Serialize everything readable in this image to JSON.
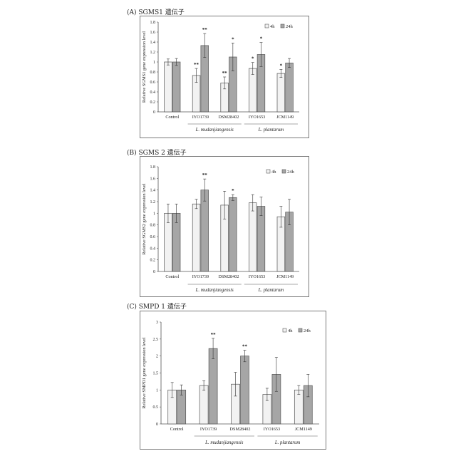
{
  "panels": [
    {
      "title": "(A) SGMS1 遺伝子"
    },
    {
      "title": "(B) SGMS 2 遺伝子"
    },
    {
      "title": "(C) SMPD 1 遺伝子"
    }
  ],
  "colors": {
    "bar_4h": "#f2f2f2",
    "bar_24h": "#a6a6a6",
    "frame": "#7a7a7a"
  },
  "chart_data": [
    {
      "type": "bar",
      "title": "",
      "ylabel": "Relative SGMS1 gene expression level",
      "ylim": [
        0,
        1.8
      ],
      "yticks": [
        "0",
        "0.2",
        "0.4",
        "0.6",
        "0.8",
        "1",
        "1.2",
        "1.4",
        "1.6",
        "1.8"
      ],
      "categories": [
        "Control",
        "IYO1739",
        "DSM28402",
        "IYO1653",
        "JCM1149"
      ],
      "groups": [
        {
          "label": "L. mudanjiangensis",
          "categories": [
            "IYO1739",
            "DSM28402"
          ]
        },
        {
          "label": "L. plantarum",
          "categories": [
            "IYO1653",
            "JCM1149"
          ]
        }
      ],
      "legend_position": "top-right",
      "series": [
        {
          "name": "4h",
          "values": [
            1.0,
            0.73,
            0.58,
            0.87,
            0.77
          ],
          "errors": [
            0.06,
            0.14,
            0.12,
            0.12,
            0.08
          ],
          "sig": [
            "",
            "**",
            "**",
            "*",
            "*"
          ]
        },
        {
          "name": "24h",
          "values": [
            1.0,
            1.33,
            1.1,
            1.15,
            0.98
          ],
          "errors": [
            0.07,
            0.24,
            0.28,
            0.24,
            0.09
          ],
          "sig": [
            "",
            "**",
            "*",
            "*",
            ""
          ]
        }
      ]
    },
    {
      "type": "bar",
      "title": "",
      "ylabel": "Relative SGMS2 gene expression level",
      "ylim": [
        0,
        1.8
      ],
      "yticks": [
        "0",
        "0.2",
        "0.4",
        "0.6",
        "0.8",
        "1",
        "1.2",
        "1.4",
        "1.6",
        "1.8"
      ],
      "categories": [
        "Control",
        "IYO1739",
        "DSM28402",
        "IYO1653",
        "JCM1149"
      ],
      "groups": [
        {
          "label": "L. mudanjiangensis",
          "categories": [
            "IYO1739",
            "DSM28402"
          ]
        },
        {
          "label": "L. plantarum",
          "categories": [
            "IYO1653",
            "JCM1149"
          ]
        }
      ],
      "legend_position": "top-right",
      "series": [
        {
          "name": "4h",
          "values": [
            1.0,
            1.16,
            1.14,
            1.18,
            0.94
          ],
          "errors": [
            0.16,
            0.08,
            0.24,
            0.14,
            0.18
          ],
          "sig": [
            "",
            "",
            "",
            "",
            ""
          ]
        },
        {
          "name": "24h",
          "values": [
            1.0,
            1.4,
            1.27,
            1.12,
            1.02
          ],
          "errors": [
            0.16,
            0.19,
            0.05,
            0.16,
            0.22
          ],
          "sig": [
            "",
            "**",
            "*",
            "",
            ""
          ]
        }
      ]
    },
    {
      "type": "bar",
      "title": "",
      "ylabel": "Relative SMPD1 gene expression level",
      "ylim": [
        0,
        3
      ],
      "yticks": [
        "0",
        "0.5",
        "1",
        "1.5",
        "2",
        "2.5",
        "3"
      ],
      "categories": [
        "Control",
        "IYO1739",
        "DSM28402",
        "IYO1653",
        "JCM1149"
      ],
      "groups": [
        {
          "label": "L. mudanjiangensis",
          "categories": [
            "IYO1739",
            "DSM28402"
          ]
        },
        {
          "label": "L. plantarum",
          "categories": [
            "IYO1653",
            "JCM1149"
          ]
        }
      ],
      "legend_position": "top-right",
      "series": [
        {
          "name": "4h",
          "values": [
            1.0,
            1.13,
            1.17,
            0.87,
            1.0
          ],
          "errors": [
            0.22,
            0.14,
            0.35,
            0.18,
            0.13
          ],
          "sig": [
            "",
            "",
            "",
            "",
            ""
          ]
        },
        {
          "name": "24h",
          "values": [
            1.0,
            2.22,
            2.0,
            1.46,
            1.13
          ],
          "errors": [
            0.15,
            0.3,
            0.17,
            0.5,
            0.33
          ],
          "sig": [
            "",
            "**",
            "**",
            "",
            ""
          ]
        }
      ]
    }
  ]
}
